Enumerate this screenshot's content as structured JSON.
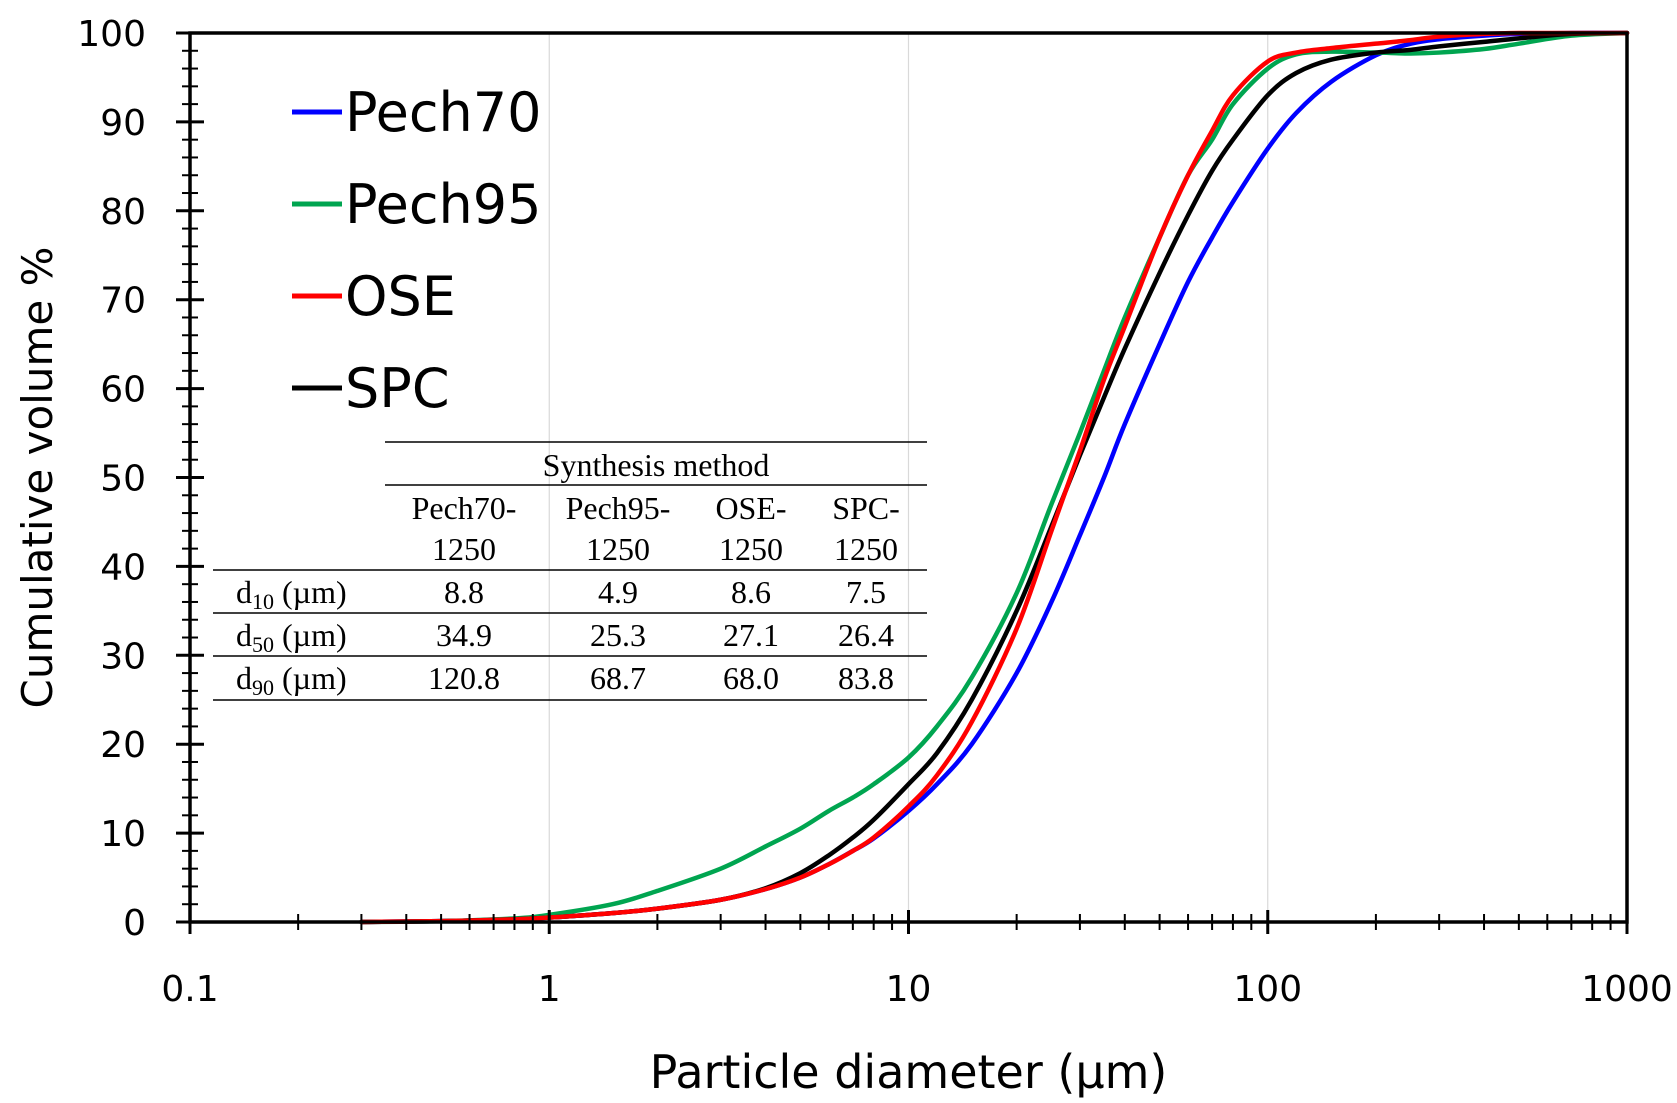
{
  "chart_data": {
    "type": "line",
    "xlabel": "Particle diameter (µm)",
    "ylabel": "Cumulative volume %",
    "xscale": "log",
    "xlim": [
      0.1,
      1000
    ],
    "ylim": [
      0,
      100
    ],
    "x_ticks": [
      "0.1",
      "1",
      "10",
      "100",
      "1000"
    ],
    "y_ticks": [
      "0",
      "10",
      "20",
      "30",
      "40",
      "50",
      "60",
      "70",
      "80",
      "90",
      "100"
    ],
    "grid": "vertical major gridlines",
    "legend_placement": "top-left",
    "series": [
      {
        "name": "Pech70",
        "color": "#0000ff",
        "x": [
          0.3,
          0.5,
          0.8,
          1,
          1.5,
          2,
          3,
          4,
          5,
          6,
          7,
          8,
          10,
          12,
          15,
          20,
          25,
          30,
          35,
          40,
          50,
          60,
          70,
          80,
          100,
          120,
          150,
          200,
          250,
          300,
          400,
          500,
          700,
          1000
        ],
        "y": [
          0,
          0.1,
          0.3,
          0.5,
          1,
          1.5,
          2.5,
          3.7,
          5,
          6.5,
          8,
          9.4,
          12.5,
          15.5,
          20,
          28,
          36,
          43.5,
          50,
          56,
          65,
          72,
          77,
          81,
          87,
          91,
          94.5,
          97.5,
          98.8,
          99.3,
          99.7,
          99.9,
          100,
          100
        ]
      },
      {
        "name": "Pech95",
        "color": "#00a550",
        "x": [
          0.3,
          0.5,
          0.8,
          1,
          1.5,
          2,
          3,
          4,
          5,
          6,
          7,
          8,
          10,
          12,
          15,
          20,
          25,
          30,
          35,
          40,
          50,
          60,
          70,
          80,
          100,
          120,
          150,
          200,
          250,
          300,
          400,
          500,
          700,
          1000
        ],
        "y": [
          0,
          0.1,
          0.4,
          0.8,
          2,
          3.5,
          6,
          8.5,
          10.5,
          12.5,
          14,
          15.5,
          18.5,
          22,
          27.5,
          37,
          47,
          55,
          62,
          68,
          77,
          84,
          88,
          92,
          96,
          97.6,
          97.9,
          97.8,
          97.7,
          97.8,
          98.2,
          98.8,
          99.7,
          100
        ]
      },
      {
        "name": "OSE",
        "color": "#ff0000",
        "x": [
          0.3,
          0.5,
          0.8,
          1,
          1.5,
          2,
          3,
          4,
          5,
          6,
          7,
          8,
          10,
          12,
          15,
          20,
          25,
          30,
          35,
          40,
          50,
          60,
          70,
          80,
          100,
          120,
          150,
          200,
          250,
          300,
          400,
          500,
          700,
          1000
        ],
        "y": [
          0,
          0.1,
          0.3,
          0.5,
          1,
          1.5,
          2.5,
          3.7,
          5,
          6.5,
          8,
          9.5,
          13,
          16.5,
          22.5,
          33,
          44,
          53,
          61,
          67,
          77,
          84,
          89,
          93,
          96.8,
          97.8,
          98.3,
          98.8,
          99.2,
          99.6,
          99.9,
          100,
          100,
          100
        ]
      },
      {
        "name": "SPC",
        "color": "#000000",
        "x": [
          0.3,
          0.5,
          0.8,
          1,
          1.5,
          2,
          3,
          4,
          5,
          6,
          7,
          8,
          10,
          12,
          15,
          20,
          25,
          30,
          35,
          40,
          50,
          60,
          70,
          80,
          100,
          120,
          150,
          200,
          250,
          300,
          400,
          500,
          700,
          1000
        ],
        "y": [
          0,
          0.1,
          0.3,
          0.5,
          1,
          1.5,
          2.5,
          3.8,
          5.5,
          7.5,
          9.5,
          11.5,
          15.5,
          19,
          25,
          35,
          44.5,
          52.5,
          59,
          64.5,
          73,
          79.5,
          84.5,
          88,
          93,
          95.5,
          97,
          97.8,
          98.1,
          98.5,
          99,
          99.4,
          99.9,
          100
        ]
      }
    ]
  },
  "table": {
    "group_header": "Synthesis method",
    "columns": [
      {
        "line1": "Pech70-",
        "line2": "1250"
      },
      {
        "line1": "Pech95-",
        "line2": "1250"
      },
      {
        "line1": "OSE-",
        "line2": "1250"
      },
      {
        "line1": "SPC-",
        "line2": "1250"
      }
    ],
    "rows": [
      {
        "label_main": "d",
        "label_sub": "10",
        "label_unit": " (µm)",
        "values": [
          "8.8",
          "4.9",
          "8.6",
          "7.5"
        ]
      },
      {
        "label_main": "d",
        "label_sub": "50",
        "label_unit": " (µm)",
        "values": [
          "34.9",
          "25.3",
          "27.1",
          "26.4"
        ]
      },
      {
        "label_main": "d",
        "label_sub": "90",
        "label_unit": " (µm)",
        "values": [
          "120.8",
          "68.7",
          "68.0",
          "83.8"
        ]
      }
    ]
  }
}
